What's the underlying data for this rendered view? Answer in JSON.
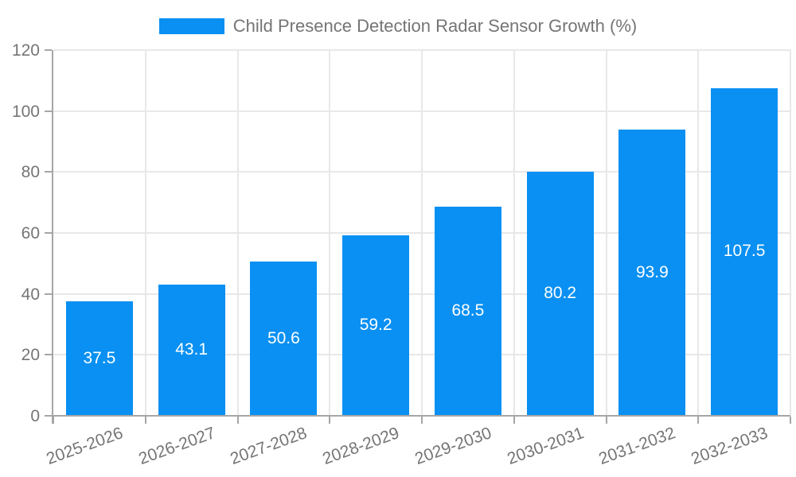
{
  "chart_data": {
    "type": "bar",
    "title": "Child Presence Detection Radar Sensor Growth (%)",
    "legend": [
      "Child Presence Detection Radar Sensor Growth (%)"
    ],
    "legend_position": "top",
    "categories": [
      "2025-2026",
      "2026-2027",
      "2027-2028",
      "2028-2029",
      "2029-2030",
      "2030-2031",
      "2031-2032",
      "2032-2033"
    ],
    "values": [
      37.5,
      43.1,
      50.6,
      59.2,
      68.5,
      80.2,
      93.9,
      107.5
    ],
    "xlabel": "",
    "ylabel": "",
    "ylim": [
      0,
      120
    ],
    "yticks": [
      0,
      20,
      40,
      60,
      80,
      100,
      120
    ],
    "grid": true,
    "bar_labels_shown": true,
    "x_label_rotation_deg": -20
  },
  "colors": {
    "bar": "#0990f2",
    "grid": "#e8e8e8",
    "axis": "#a6a6a6",
    "text": "#757575",
    "bar_label": "#ffffff",
    "background": "#ffffff"
  }
}
